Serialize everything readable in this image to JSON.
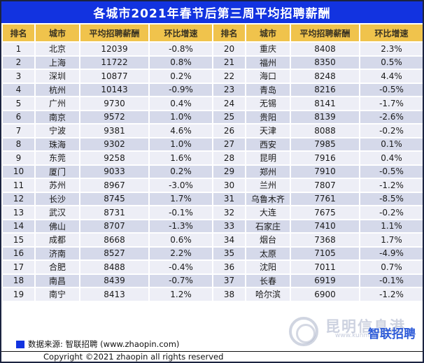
{
  "title": "各城市2021年春节后第三周平均招聘薪酬",
  "chart_data": {
    "type": "table",
    "title": "各城市2021年春节后第三周平均招聘薪酬",
    "columns": [
      "排名",
      "城市",
      "平均招聘薪酬",
      "环比增速"
    ],
    "left_rows": [
      {
        "rank": "1",
        "city": "北京",
        "salary": "12039",
        "growth": "-0.8%"
      },
      {
        "rank": "2",
        "city": "上海",
        "salary": "11722",
        "growth": "0.8%"
      },
      {
        "rank": "3",
        "city": "深圳",
        "salary": "10877",
        "growth": "0.2%"
      },
      {
        "rank": "4",
        "city": "杭州",
        "salary": "10143",
        "growth": "-0.9%"
      },
      {
        "rank": "5",
        "city": "广州",
        "salary": "9730",
        "growth": "0.4%"
      },
      {
        "rank": "6",
        "city": "南京",
        "salary": "9572",
        "growth": "1.0%"
      },
      {
        "rank": "7",
        "city": "宁波",
        "salary": "9381",
        "growth": "4.6%"
      },
      {
        "rank": "8",
        "city": "珠海",
        "salary": "9302",
        "growth": "1.0%"
      },
      {
        "rank": "9",
        "city": "东莞",
        "salary": "9258",
        "growth": "1.6%"
      },
      {
        "rank": "10",
        "city": "厦门",
        "salary": "9033",
        "growth": "0.2%"
      },
      {
        "rank": "11",
        "city": "苏州",
        "salary": "8967",
        "growth": "-3.0%"
      },
      {
        "rank": "12",
        "city": "长沙",
        "salary": "8745",
        "growth": "1.7%"
      },
      {
        "rank": "13",
        "city": "武汉",
        "salary": "8731",
        "growth": "-0.1%"
      },
      {
        "rank": "14",
        "city": "佛山",
        "salary": "8707",
        "growth": "-1.3%"
      },
      {
        "rank": "15",
        "city": "成都",
        "salary": "8668",
        "growth": "0.6%"
      },
      {
        "rank": "16",
        "city": "济南",
        "salary": "8527",
        "growth": "2.2%"
      },
      {
        "rank": "17",
        "city": "合肥",
        "salary": "8488",
        "growth": "-0.4%"
      },
      {
        "rank": "18",
        "city": "南昌",
        "salary": "8439",
        "growth": "-0.7%"
      },
      {
        "rank": "19",
        "city": "南宁",
        "salary": "8413",
        "growth": "1.2%"
      }
    ],
    "right_rows": [
      {
        "rank": "20",
        "city": "重庆",
        "salary": "8408",
        "growth": "2.3%"
      },
      {
        "rank": "21",
        "city": "福州",
        "salary": "8350",
        "growth": "0.5%"
      },
      {
        "rank": "22",
        "city": "海口",
        "salary": "8248",
        "growth": "4.4%"
      },
      {
        "rank": "23",
        "city": "青岛",
        "salary": "8216",
        "growth": "-0.5%"
      },
      {
        "rank": "24",
        "city": "无锡",
        "salary": "8141",
        "growth": "-1.7%"
      },
      {
        "rank": "25",
        "city": "贵阳",
        "salary": "8139",
        "growth": "-2.6%"
      },
      {
        "rank": "26",
        "city": "天津",
        "salary": "8088",
        "growth": "-0.2%"
      },
      {
        "rank": "27",
        "city": "西安",
        "salary": "7985",
        "growth": "0.1%"
      },
      {
        "rank": "28",
        "city": "昆明",
        "salary": "7916",
        "growth": "0.4%"
      },
      {
        "rank": "29",
        "city": "郑州",
        "salary": "7910",
        "growth": "-0.5%"
      },
      {
        "rank": "30",
        "city": "兰州",
        "salary": "7807",
        "growth": "-1.2%"
      },
      {
        "rank": "31",
        "city": "乌鲁木齐",
        "salary": "7761",
        "growth": "-8.5%"
      },
      {
        "rank": "32",
        "city": "大连",
        "salary": "7675",
        "growth": "-0.2%"
      },
      {
        "rank": "33",
        "city": "石家庄",
        "salary": "7410",
        "growth": "1.1%"
      },
      {
        "rank": "34",
        "city": "烟台",
        "salary": "7368",
        "growth": "1.7%"
      },
      {
        "rank": "35",
        "city": "太原",
        "salary": "7105",
        "growth": "-4.9%"
      },
      {
        "rank": "36",
        "city": "沈阳",
        "salary": "7011",
        "growth": "0.7%"
      },
      {
        "rank": "37",
        "city": "长春",
        "salary": "6919",
        "growth": "-0.1%"
      },
      {
        "rank": "38",
        "city": "哈尔滨",
        "salary": "6900",
        "growth": "-1.2%"
      }
    ]
  },
  "footer": {
    "source": "数据来源: 智联招聘 (www.zhaopin.com)",
    "copyright": "Copyright ©2021 zhaopin all rights reserved"
  },
  "watermark": {
    "text": "昆明信息港",
    "url_text": "www.kunming.cn",
    "logo_text": "智联招聘"
  },
  "colors": {
    "title_bg": "#1233E0",
    "header_bg": "#F0C34C",
    "row_odd": "#EDEEF6",
    "row_even": "#D5D9EA",
    "frame_border": "#1B2340",
    "logo_blue": "#2D5BD8",
    "logo_yellow": "#F5C013"
  }
}
